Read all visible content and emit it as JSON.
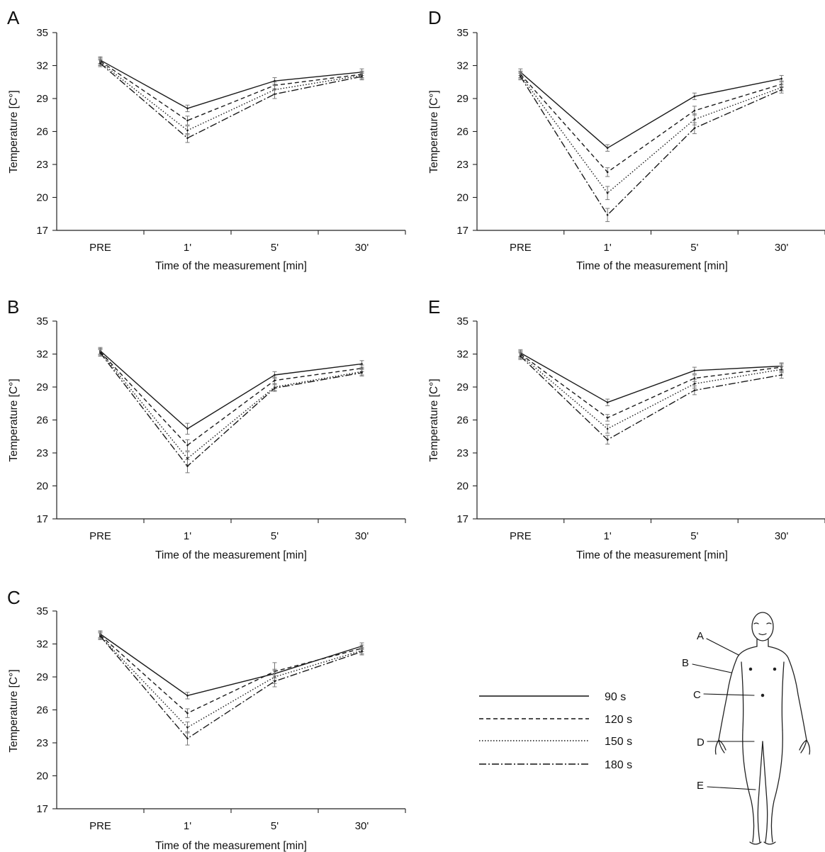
{
  "chart_data": [
    {
      "type": "line",
      "panel_label": "A",
      "categories": [
        "PRE",
        "1'",
        "5'",
        "30'"
      ],
      "xlabel": "Time of the measurement [min]",
      "ylabel": "Temperature [C°]",
      "ylim": [
        17,
        35
      ],
      "yticks": [
        "17",
        "20",
        "23",
        "26",
        "29",
        "32",
        "35"
      ],
      "series": [
        {
          "name": "90 s",
          "style": "solid",
          "values": [
            32.5,
            28.1,
            30.6,
            31.4
          ],
          "errors": [
            0.3,
            0.3,
            0.3,
            0.3
          ]
        },
        {
          "name": "120 s",
          "style": "dashed",
          "values": [
            32.4,
            27.0,
            30.2,
            31.2
          ],
          "errors": [
            0.3,
            0.4,
            0.3,
            0.3
          ]
        },
        {
          "name": "150 s",
          "style": "dotted",
          "values": [
            32.3,
            26.1,
            29.8,
            31.1
          ],
          "errors": [
            0.3,
            0.4,
            0.4,
            0.3
          ]
        },
        {
          "name": "180 s",
          "style": "dashdot",
          "values": [
            32.2,
            25.4,
            29.4,
            31.0
          ],
          "errors": [
            0.3,
            0.4,
            0.4,
            0.3
          ]
        }
      ]
    },
    {
      "type": "line",
      "panel_label": "B",
      "categories": [
        "PRE",
        "1'",
        "5'",
        "30'"
      ],
      "xlabel": "Time of the measurement [min]",
      "ylabel": "Temperature [C°]",
      "ylim": [
        17,
        35
      ],
      "yticks": [
        "17",
        "20",
        "23",
        "26",
        "29",
        "32",
        "35"
      ],
      "series": [
        {
          "name": "90 s",
          "style": "solid",
          "values": [
            32.3,
            25.2,
            30.1,
            31.1
          ],
          "errors": [
            0.3,
            0.5,
            0.3,
            0.3
          ]
        },
        {
          "name": "120 s",
          "style": "dashed",
          "values": [
            32.2,
            23.7,
            29.6,
            30.7
          ],
          "errors": [
            0.3,
            0.5,
            0.3,
            0.3
          ]
        },
        {
          "name": "150 s",
          "style": "dotted",
          "values": [
            32.2,
            22.5,
            29.0,
            30.4
          ],
          "errors": [
            0.3,
            0.6,
            0.3,
            0.3
          ]
        },
        {
          "name": "180 s",
          "style": "dashdot",
          "values": [
            32.1,
            21.8,
            28.9,
            30.3
          ],
          "errors": [
            0.3,
            0.6,
            0.3,
            0.3
          ]
        }
      ]
    },
    {
      "type": "line",
      "panel_label": "C",
      "categories": [
        "PRE",
        "1'",
        "5'",
        "30'"
      ],
      "xlabel": "Time of the measurement [min]",
      "ylabel": "Temperature [C°]",
      "ylim": [
        17,
        35
      ],
      "yticks": [
        "17",
        "20",
        "23",
        "26",
        "29",
        "32",
        "35"
      ],
      "series": [
        {
          "name": "90 s",
          "style": "solid",
          "values": [
            32.9,
            27.3,
            29.3,
            31.8
          ],
          "errors": [
            0.3,
            0.3,
            0.4,
            0.3
          ]
        },
        {
          "name": "120 s",
          "style": "dashed",
          "values": [
            32.8,
            25.7,
            29.5,
            31.6
          ],
          "errors": [
            0.3,
            0.4,
            0.8,
            0.3
          ]
        },
        {
          "name": "150 s",
          "style": "dotted",
          "values": [
            32.7,
            24.4,
            29.0,
            31.4
          ],
          "errors": [
            0.3,
            0.5,
            0.6,
            0.3
          ]
        },
        {
          "name": "180 s",
          "style": "dashdot",
          "values": [
            32.7,
            23.4,
            28.6,
            31.3
          ],
          "errors": [
            0.3,
            0.6,
            0.5,
            0.3
          ]
        }
      ]
    },
    {
      "type": "line",
      "panel_label": "D",
      "categories": [
        "PRE",
        "1'",
        "5'",
        "30'"
      ],
      "xlabel": "Time of the measurement [min]",
      "ylabel": "Temperature [C°]",
      "ylim": [
        17,
        35
      ],
      "yticks": [
        "17",
        "20",
        "23",
        "26",
        "29",
        "32",
        "35"
      ],
      "series": [
        {
          "name": "90 s",
          "style": "solid",
          "values": [
            31.4,
            24.5,
            29.2,
            30.8
          ],
          "errors": [
            0.3,
            0.3,
            0.3,
            0.3
          ]
        },
        {
          "name": "120 s",
          "style": "dashed",
          "values": [
            31.2,
            22.3,
            27.9,
            30.3
          ],
          "errors": [
            0.3,
            0.4,
            0.4,
            0.3
          ]
        },
        {
          "name": "150 s",
          "style": "dotted",
          "values": [
            31.1,
            20.4,
            27.1,
            30.0
          ],
          "errors": [
            0.3,
            0.6,
            0.5,
            0.3
          ]
        },
        {
          "name": "180 s",
          "style": "dashdot",
          "values": [
            31.0,
            18.4,
            26.3,
            29.8
          ],
          "errors": [
            0.3,
            0.6,
            0.5,
            0.3
          ]
        }
      ]
    },
    {
      "type": "line",
      "panel_label": "E",
      "categories": [
        "PRE",
        "1'",
        "5'",
        "30'"
      ],
      "xlabel": "Time of the measurement [min]",
      "ylabel": "Temperature [C°]",
      "ylim": [
        17,
        35
      ],
      "yticks": [
        "17",
        "20",
        "23",
        "26",
        "29",
        "32",
        "35"
      ],
      "series": [
        {
          "name": "90 s",
          "style": "solid",
          "values": [
            32.1,
            27.6,
            30.5,
            30.9
          ],
          "errors": [
            0.3,
            0.3,
            0.3,
            0.3
          ]
        },
        {
          "name": "120 s",
          "style": "dashed",
          "values": [
            32.0,
            26.2,
            29.8,
            30.8
          ],
          "errors": [
            0.3,
            0.3,
            0.3,
            0.3
          ]
        },
        {
          "name": "150 s",
          "style": "dotted",
          "values": [
            31.9,
            25.2,
            29.3,
            30.6
          ],
          "errors": [
            0.3,
            0.4,
            0.4,
            0.3
          ]
        },
        {
          "name": "180 s",
          "style": "dashdot",
          "values": [
            31.8,
            24.2,
            28.7,
            30.1
          ],
          "errors": [
            0.3,
            0.4,
            0.4,
            0.3
          ]
        }
      ]
    }
  ],
  "legend": {
    "items": [
      {
        "label": "90 s",
        "style": "solid"
      },
      {
        "label": "120 s",
        "style": "dashed"
      },
      {
        "label": "150 s",
        "style": "dotted"
      },
      {
        "label": "180 s",
        "style": "dashdot"
      }
    ]
  },
  "body_diagram": {
    "labels": [
      "A",
      "B",
      "C",
      "D",
      "E"
    ]
  },
  "colors": {
    "line": "#1a1a1a",
    "errorbar": "#777777",
    "background": "#ffffff"
  }
}
